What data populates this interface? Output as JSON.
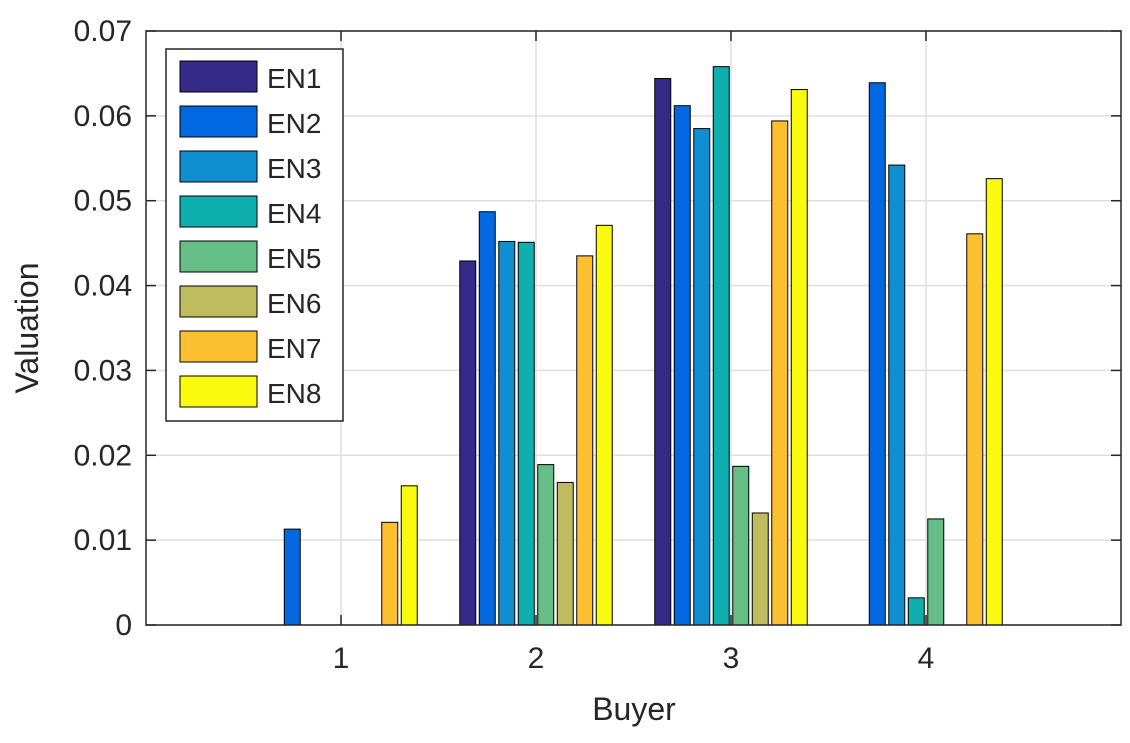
{
  "chart_data": {
    "type": "bar",
    "xlabel": "Buyer",
    "ylabel": "Valuation",
    "categories": [
      "1",
      "2",
      "3",
      "4"
    ],
    "xlim": [
      0,
      5
    ],
    "ylim": [
      0,
      0.07
    ],
    "yticks": [
      "0",
      "0.01",
      "0.02",
      "0.03",
      "0.04",
      "0.05",
      "0.06",
      "0.07"
    ],
    "grid": true,
    "legend_position": "top-left",
    "series": [
      {
        "name": "EN1",
        "color": "#352a87",
        "values": [
          0,
          0.0429,
          0.0644,
          0
        ]
      },
      {
        "name": "EN2",
        "color": "#0268e1",
        "values": [
          0.0113,
          0.0487,
          0.0612,
          0.0639
        ]
      },
      {
        "name": "EN3",
        "color": "#108ed2",
        "values": [
          0,
          0.0452,
          0.0585,
          0.0542
        ]
      },
      {
        "name": "EN4",
        "color": "#0fafaf",
        "values": [
          0,
          0.0451,
          0.0658,
          0.0032
        ]
      },
      {
        "name": "EN5",
        "color": "#65be86",
        "values": [
          0,
          0.0189,
          0.0187,
          0.0125
        ]
      },
      {
        "name": "EN6",
        "color": "#bfbc60",
        "values": [
          0,
          0.0168,
          0.0132,
          0
        ]
      },
      {
        "name": "EN7",
        "color": "#fcbf30",
        "values": [
          0.0121,
          0.0435,
          0.0594,
          0.0461
        ]
      },
      {
        "name": "EN8",
        "color": "#f9fa0e",
        "values": [
          0.0164,
          0.0471,
          0.0631,
          0.0526
        ]
      }
    ]
  }
}
